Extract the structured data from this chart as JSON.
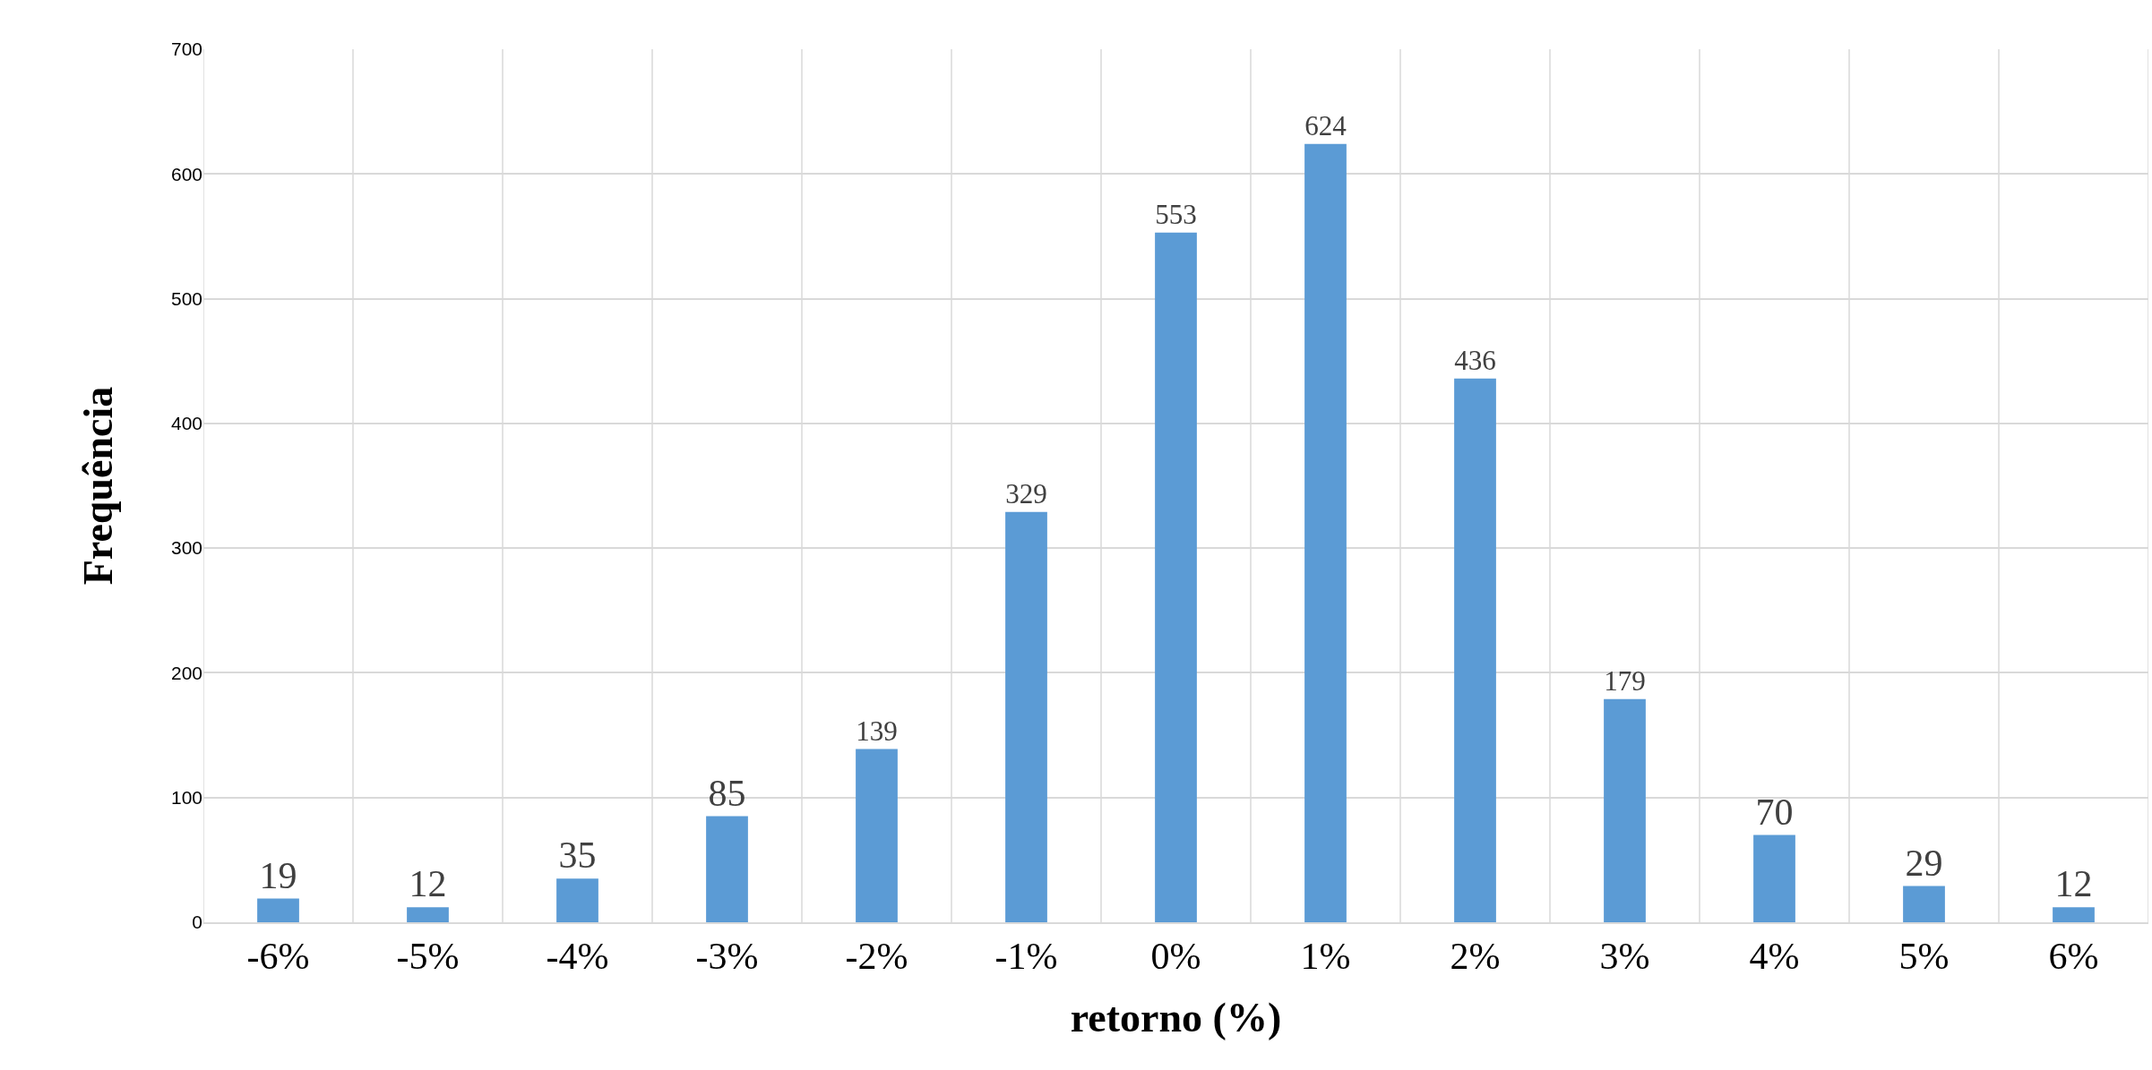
{
  "chart_data": {
    "type": "bar",
    "xlabel": "retorno (%)",
    "ylabel": "Frequência",
    "categories": [
      "-6%",
      "-5%",
      "-4%",
      "-3%",
      "-2%",
      "-1%",
      "0%",
      "1%",
      "2%",
      "3%",
      "4%",
      "5%",
      "6%"
    ],
    "values": [
      19,
      12,
      35,
      85,
      139,
      329,
      553,
      624,
      436,
      179,
      70,
      29,
      12
    ],
    "color": "#5b9bd5",
    "ylim": [
      0,
      700
    ],
    "yticks": [
      0,
      100,
      200,
      300,
      400,
      500,
      600,
      700
    ],
    "grid": true,
    "data_labels": true
  }
}
